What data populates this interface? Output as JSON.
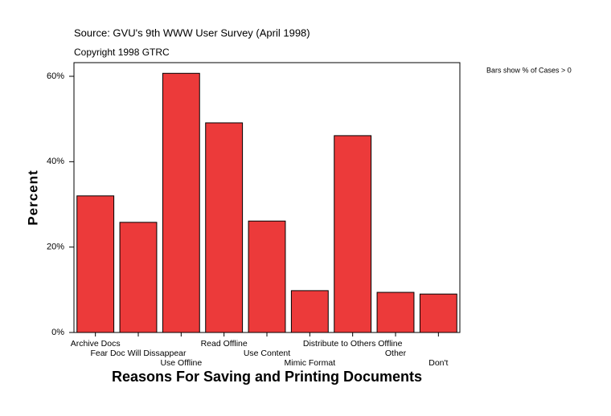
{
  "chart_data": {
    "type": "bar",
    "title": "Source: GVU's 9th WWW User Survey (April 1998)",
    "subtitle": "Copyright 1998 GTRC",
    "annotation": "Bars show % of Cases > 0",
    "y_label": "Percent",
    "x_label": "Reasons For Saving and Printing Documents",
    "categories": [
      "Archive Docs",
      "Fear Doc Will Dissappear",
      "Use Offline",
      "Read Offline",
      "Use Content",
      "Mimic Format",
      "Distribute to Others Offline",
      "Other",
      "Don't"
    ],
    "values": [
      32.0,
      25.8,
      60.7,
      49.1,
      26.1,
      9.8,
      46.1,
      9.4,
      9.0
    ],
    "color": "#ec3a3a",
    "ylim": [
      0,
      63.2
    ],
    "yticks": [
      {
        "value": 0,
        "label": "0%"
      },
      {
        "value": 20,
        "label": "20%"
      },
      {
        "value": 40,
        "label": "40%"
      },
      {
        "value": 60,
        "label": "60%"
      }
    ],
    "grid": false
  }
}
